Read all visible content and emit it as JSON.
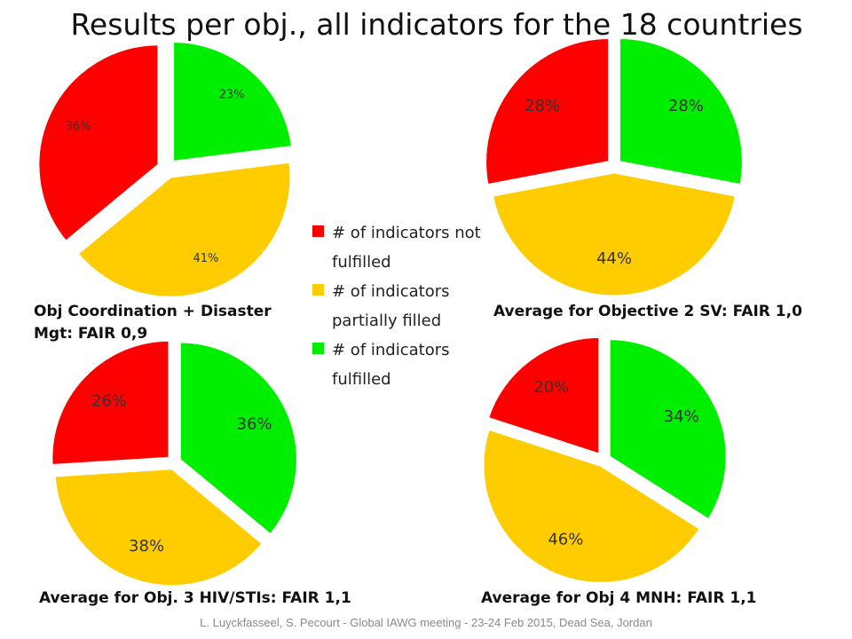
{
  "title": "Results per obj., all indicators for the 18 countries",
  "footer": "L. Luyckfasseel, S. Pecourt - Global IAWG meeting - 23-24 Feb 2015, Dead Sea, Jordan",
  "legend": [
    {
      "label_lines": [
        "# of indicators not",
        "fulfilled"
      ],
      "color": "#ff0000"
    },
    {
      "label_lines": [
        "# of indicators",
        "partially filled"
      ],
      "color": "#ffcc00"
    },
    {
      "label_lines": [
        "# of indicators",
        "fulfilled"
      ],
      "color": "#00ee00"
    }
  ],
  "chart_data": [
    {
      "type": "pie",
      "title_lines": [
        "Obj Coordination + Disaster",
        "Mgt: FAIR 0,9"
      ],
      "categories": [
        "# of indicators fulfilled",
        "# of indicators partially filled",
        "# of indicators not fulfilled"
      ],
      "values": [
        23,
        41,
        36
      ],
      "labels": [
        "23%",
        "41%",
        "36%"
      ],
      "colors": [
        "#00ee00",
        "#ffcc00",
        "#ff0000"
      ]
    },
    {
      "type": "pie",
      "title_lines": [
        "Average for Objective 2 SV: FAIR 1,0"
      ],
      "categories": [
        "# of indicators fulfilled",
        "# of indicators partially filled",
        "# of indicators not fulfilled"
      ],
      "values": [
        28,
        44,
        28
      ],
      "labels": [
        "28%",
        "44%",
        "28%"
      ],
      "colors": [
        "#00ee00",
        "#ffcc00",
        "#ff0000"
      ]
    },
    {
      "type": "pie",
      "title_lines": [
        "Average for Obj. 3 HIV/STIs: FAIR 1,1"
      ],
      "categories": [
        "# of indicators fulfilled",
        "# of indicators partially filled",
        "# of indicators not fulfilled"
      ],
      "values": [
        36,
        38,
        26
      ],
      "labels": [
        "36%",
        "38%",
        "26%"
      ],
      "colors": [
        "#00ee00",
        "#ffcc00",
        "#ff0000"
      ]
    },
    {
      "type": "pie",
      "title_lines": [
        "Average for Obj 4 MNH: FAIR 1,1"
      ],
      "categories": [
        "# of indicators fulfilled",
        "# of indicators partially filled",
        "# of indicators not fulfilled"
      ],
      "values": [
        34,
        46,
        20
      ],
      "labels": [
        "34%",
        "46%",
        "20%"
      ],
      "colors": [
        "#00ee00",
        "#ffcc00",
        "#ff0000"
      ]
    }
  ]
}
